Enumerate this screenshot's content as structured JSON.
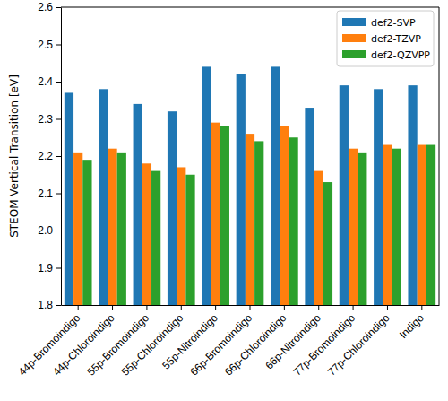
{
  "chart_data": {
    "type": "bar",
    "y_label": "STEOM Vertical Transition [eV]",
    "categories": [
      "44p-Bromoindigo",
      "44p-Chloroindigo",
      "55p-Bromoindigo",
      "55p-Chloroindigo",
      "55p-Nitroindigo",
      "66p-Bromoindigo",
      "66p-Chloroindigo",
      "66p-Nitroindigo",
      "77p-Bromoindigo",
      "77p-Chloroindigo",
      "Indigo"
    ],
    "series": [
      {
        "name": "def2-SVP",
        "color": "#1f77b4",
        "values": [
          2.37,
          2.38,
          2.34,
          2.32,
          2.44,
          2.42,
          2.44,
          2.33,
          2.39,
          2.38,
          2.39
        ]
      },
      {
        "name": "def2-TZVP",
        "color": "#ff7f0e",
        "values": [
          2.21,
          2.22,
          2.18,
          2.17,
          2.29,
          2.26,
          2.28,
          2.16,
          2.22,
          2.23,
          2.23
        ]
      },
      {
        "name": "def2-QZVPP",
        "color": "#2ca02c",
        "values": [
          2.19,
          2.21,
          2.16,
          2.15,
          2.28,
          2.24,
          2.25,
          2.13,
          2.21,
          2.22,
          2.23
        ]
      }
    ],
    "ylim": [
      1.8,
      2.6
    ],
    "yticks": [
      1.8,
      1.9,
      {
        "value": 2,
        "label": "2.0"
      },
      2.1,
      2.2,
      2.3,
      2.4,
      2.5,
      2.6
    ],
    "legend": "upper right",
    "grid": false
  }
}
